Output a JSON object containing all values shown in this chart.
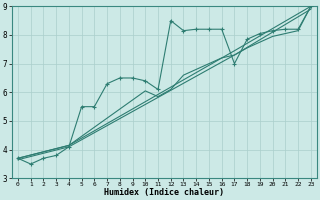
{
  "xlabel": "Humidex (Indice chaleur)",
  "background_color": "#cce9e6",
  "grid_color": "#aacfcc",
  "line_color": "#2e7d72",
  "xlim": [
    -0.5,
    23.5
  ],
  "ylim": [
    3,
    9
  ],
  "xticks": [
    0,
    1,
    2,
    3,
    4,
    5,
    6,
    7,
    8,
    9,
    10,
    11,
    12,
    13,
    14,
    15,
    16,
    17,
    18,
    19,
    20,
    21,
    22,
    23
  ],
  "yticks": [
    3,
    4,
    5,
    6,
    7,
    8,
    9
  ],
  "series1_x": [
    0,
    1,
    2,
    3,
    4,
    5,
    6,
    7,
    8,
    9,
    10,
    11,
    12,
    13,
    14,
    15,
    16,
    17,
    18,
    19,
    20,
    21,
    22,
    23
  ],
  "series1_y": [
    3.7,
    3.5,
    3.7,
    3.8,
    4.1,
    5.5,
    5.5,
    6.3,
    6.5,
    6.5,
    6.4,
    6.1,
    8.5,
    8.15,
    8.2,
    8.2,
    8.2,
    7.0,
    7.85,
    8.05,
    8.15,
    8.2,
    8.2,
    9.0
  ],
  "series2_x": [
    0,
    4,
    10,
    11,
    12,
    13,
    14,
    15,
    16,
    17,
    18,
    19,
    20,
    21,
    22,
    23
  ],
  "series2_y": [
    3.7,
    4.15,
    6.05,
    5.85,
    6.1,
    6.6,
    6.8,
    7.0,
    7.2,
    7.3,
    7.55,
    7.75,
    7.95,
    8.05,
    8.15,
    9.0
  ],
  "series3_x": [
    0,
    4,
    17,
    23
  ],
  "series3_y": [
    3.7,
    4.15,
    7.45,
    9.0
  ],
  "series4_x": [
    0,
    4,
    17,
    23
  ],
  "series4_y": [
    3.65,
    4.1,
    7.3,
    8.9
  ]
}
